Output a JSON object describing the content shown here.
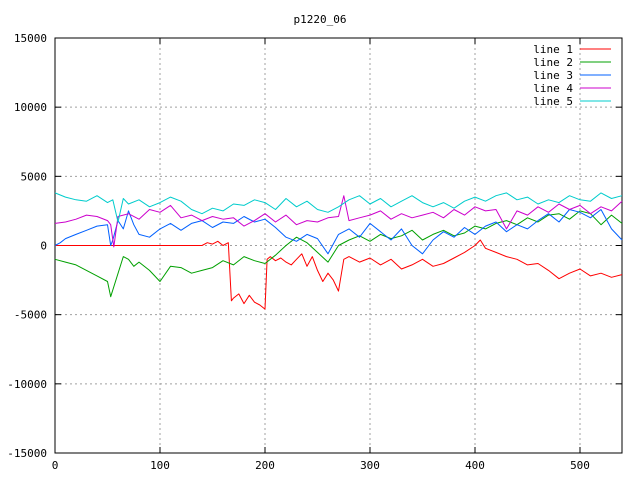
{
  "chart_data": {
    "type": "line",
    "title": "p1220_06",
    "xlabel": "",
    "ylabel": "",
    "xlim": [
      0,
      540
    ],
    "ylim": [
      -15000,
      15000
    ],
    "x_ticks": [
      0,
      100,
      200,
      300,
      400,
      500
    ],
    "y_ticks": [
      -15000,
      -10000,
      -5000,
      0,
      5000,
      10000,
      15000
    ],
    "grid": true,
    "legend_position": "top-right",
    "series": [
      {
        "name": "line 1",
        "color": "#ff0000",
        "x": [
          0,
          20,
          40,
          60,
          80,
          100,
          120,
          140,
          145,
          150,
          155,
          160,
          165,
          168,
          170,
          175,
          180,
          185,
          190,
          195,
          200,
          202,
          205,
          210,
          215,
          220,
          225,
          230,
          235,
          240,
          245,
          250,
          255,
          260,
          265,
          270,
          275,
          280,
          290,
          300,
          310,
          320,
          330,
          340,
          350,
          360,
          370,
          380,
          390,
          400,
          405,
          410,
          420,
          430,
          440,
          450,
          460,
          470,
          480,
          490,
          500,
          510,
          520,
          530,
          540
        ],
        "y": [
          0,
          0,
          0,
          0,
          0,
          0,
          0,
          0,
          200,
          100,
          300,
          0,
          200,
          -4000,
          -3800,
          -3500,
          -4200,
          -3600,
          -4100,
          -4300,
          -4600,
          -1000,
          -800,
          -1100,
          -900,
          -1200,
          -1400,
          -1000,
          -600,
          -1500,
          -800,
          -1800,
          -2600,
          -2000,
          -2500,
          -3300,
          -1000,
          -800,
          -1200,
          -900,
          -1400,
          -1000,
          -1700,
          -1400,
          -1000,
          -1500,
          -1300,
          -900,
          -500,
          0,
          400,
          -200,
          -500,
          -800,
          -1000,
          -1400,
          -1300,
          -1800,
          -2400,
          -2000,
          -1700,
          -2200,
          -2000,
          -2300,
          -2100
        ]
      },
      {
        "name": "line 2",
        "color": "#00a000",
        "x": [
          0,
          10,
          20,
          30,
          40,
          50,
          53,
          58,
          65,
          70,
          75,
          80,
          90,
          100,
          110,
          120,
          130,
          140,
          150,
          160,
          170,
          180,
          190,
          200,
          210,
          220,
          230,
          240,
          250,
          260,
          270,
          280,
          290,
          300,
          310,
          320,
          330,
          340,
          350,
          360,
          370,
          380,
          390,
          400,
          410,
          420,
          430,
          440,
          450,
          460,
          470,
          480,
          490,
          500,
          510,
          520,
          530,
          540
        ],
        "y": [
          -1000,
          -1200,
          -1400,
          -1800,
          -2200,
          -2600,
          -3700,
          -2500,
          -800,
          -1000,
          -1500,
          -1200,
          -1800,
          -2600,
          -1500,
          -1600,
          -2000,
          -1800,
          -1600,
          -1100,
          -1400,
          -800,
          -1100,
          -1300,
          -700,
          0,
          600,
          200,
          -500,
          -1200,
          0,
          400,
          700,
          300,
          800,
          500,
          700,
          1100,
          400,
          800,
          1100,
          700,
          900,
          1400,
          1200,
          1600,
          1800,
          1500,
          2000,
          1700,
          2200,
          2300,
          1900,
          2500,
          2300,
          1500,
          2200,
          1600
        ]
      },
      {
        "name": "line 3",
        "color": "#0060ff",
        "x": [
          0,
          5,
          10,
          20,
          30,
          40,
          50,
          53,
          55,
          60,
          65,
          70,
          75,
          80,
          90,
          100,
          110,
          120,
          130,
          140,
          150,
          160,
          170,
          180,
          190,
          200,
          210,
          220,
          230,
          240,
          250,
          260,
          270,
          280,
          290,
          300,
          310,
          320,
          330,
          340,
          350,
          360,
          370,
          380,
          390,
          400,
          410,
          420,
          430,
          440,
          450,
          460,
          470,
          480,
          490,
          500,
          510,
          520,
          530,
          540
        ],
        "y": [
          0,
          200,
          500,
          800,
          1100,
          1400,
          1500,
          0,
          400,
          1800,
          1200,
          2500,
          1500,
          800,
          600,
          1200,
          1600,
          1100,
          1600,
          1800,
          1300,
          1700,
          1600,
          2100,
          1700,
          1900,
          1300,
          600,
          300,
          800,
          500,
          -600,
          800,
          1200,
          600,
          1600,
          1000,
          400,
          1200,
          0,
          -600,
          400,
          1000,
          600,
          1300,
          800,
          1400,
          1700,
          1000,
          1500,
          1200,
          1800,
          2300,
          1700,
          2600,
          2400,
          2000,
          2600,
          1200,
          400
        ]
      },
      {
        "name": "line 4",
        "color": "#cc00cc",
        "x": [
          0,
          10,
          20,
          30,
          40,
          50,
          53,
          56,
          60,
          70,
          80,
          90,
          100,
          110,
          120,
          130,
          140,
          150,
          160,
          170,
          180,
          190,
          200,
          210,
          220,
          230,
          240,
          250,
          260,
          270,
          275,
          280,
          290,
          300,
          310,
          320,
          330,
          340,
          350,
          360,
          370,
          380,
          390,
          400,
          410,
          420,
          430,
          440,
          450,
          460,
          470,
          480,
          490,
          500,
          510,
          520,
          530,
          540
        ],
        "y": [
          1600,
          1700,
          1900,
          2200,
          2100,
          1800,
          1500,
          -100,
          2100,
          2300,
          1900,
          2600,
          2400,
          2900,
          2000,
          2200,
          1800,
          2100,
          1900,
          2000,
          1400,
          1800,
          2300,
          1700,
          2200,
          1500,
          1800,
          1700,
          2000,
          2100,
          3600,
          1800,
          2000,
          2200,
          2500,
          1900,
          2300,
          2000,
          2200,
          2400,
          2000,
          2600,
          2200,
          2800,
          2500,
          2600,
          1200,
          2500,
          2200,
          2800,
          2400,
          3000,
          2600,
          2900,
          2300,
          2800,
          2500,
          3200
        ]
      },
      {
        "name": "line 5",
        "color": "#00cccc",
        "x": [
          0,
          10,
          20,
          30,
          40,
          50,
          55,
          60,
          65,
          70,
          80,
          90,
          100,
          110,
          120,
          130,
          140,
          150,
          160,
          170,
          180,
          190,
          200,
          210,
          220,
          230,
          240,
          250,
          260,
          270,
          280,
          290,
          300,
          310,
          320,
          330,
          340,
          350,
          360,
          370,
          380,
          390,
          400,
          410,
          420,
          430,
          440,
          450,
          460,
          470,
          480,
          490,
          500,
          510,
          520,
          530,
          540
        ],
        "y": [
          3800,
          3500,
          3300,
          3200,
          3600,
          3100,
          3300,
          1700,
          3400,
          3000,
          3300,
          2800,
          3100,
          3500,
          3200,
          2600,
          2300,
          2700,
          2500,
          3000,
          2900,
          3300,
          3100,
          2600,
          3400,
          2800,
          3200,
          2600,
          2400,
          2800,
          3300,
          3600,
          3000,
          3400,
          2800,
          3200,
          3600,
          3100,
          2800,
          3100,
          2700,
          3200,
          3500,
          3200,
          3600,
          3800,
          3300,
          3500,
          3000,
          3300,
          3100,
          3600,
          3300,
          3200,
          3800,
          3400,
          3600
        ]
      }
    ]
  }
}
